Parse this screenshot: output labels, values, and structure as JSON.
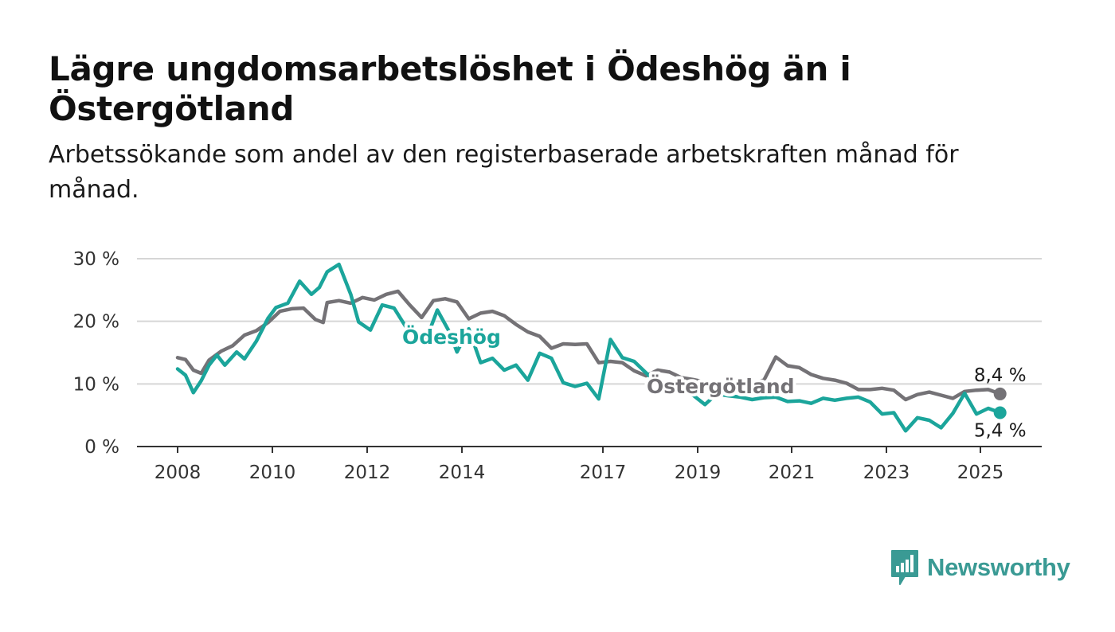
{
  "title": "Lägre ungdomsarbetslöshet i Ödeshög än i Östergötland",
  "subtitle": "Arbetssökande som andel av den registerbaserade arbetskraften månad för månad.",
  "brand": {
    "name": "Newsworthy",
    "color": "#3a9a94",
    "icon": "bar-chart-speech-bubble-icon"
  },
  "chart_data": {
    "type": "line",
    "x_ticks": [
      "2008",
      "2010",
      "2012",
      "2014",
      "2017",
      "2019",
      "2021",
      "2023",
      "2025"
    ],
    "y_ticks": [
      0,
      10,
      20,
      30
    ],
    "y_tick_labels": [
      "0 %",
      "10 %",
      "20 %",
      "30 %"
    ],
    "ylim": [
      0,
      30
    ],
    "xlim": [
      "2007-10",
      "2026-12"
    ],
    "grid": true,
    "legend": "inline labels",
    "series": [
      {
        "name": "Östergötland",
        "color": "#747276",
        "end_label": "8,4 %",
        "points": [
          [
            "2008-01",
            14.2
          ],
          [
            "2008-03",
            13.9
          ],
          [
            "2008-05",
            12.2
          ],
          [
            "2008-07",
            11.7
          ],
          [
            "2008-09",
            13.8
          ],
          [
            "2008-12",
            15.2
          ],
          [
            "2009-03",
            16.1
          ],
          [
            "2009-06",
            17.8
          ],
          [
            "2009-09",
            18.5
          ],
          [
            "2009-12",
            19.8
          ],
          [
            "2010-03",
            21.6
          ],
          [
            "2010-06",
            22.0
          ],
          [
            "2010-09",
            22.1
          ],
          [
            "2010-12",
            20.3
          ],
          [
            "2011-02",
            19.8
          ],
          [
            "2011-03",
            23.0
          ],
          [
            "2011-06",
            23.3
          ],
          [
            "2011-09",
            22.9
          ],
          [
            "2011-12",
            23.8
          ],
          [
            "2012-03",
            23.4
          ],
          [
            "2012-06",
            24.3
          ],
          [
            "2012-09",
            24.8
          ],
          [
            "2012-12",
            22.6
          ],
          [
            "2013-03",
            20.6
          ],
          [
            "2013-06",
            23.3
          ],
          [
            "2013-09",
            23.6
          ],
          [
            "2013-12",
            23.1
          ],
          [
            "2014-03",
            20.4
          ],
          [
            "2014-06",
            21.3
          ],
          [
            "2014-09",
            21.6
          ],
          [
            "2014-12",
            20.9
          ],
          [
            "2015-03",
            19.5
          ],
          [
            "2015-06",
            18.3
          ],
          [
            "2015-09",
            17.6
          ],
          [
            "2015-12",
            15.7
          ],
          [
            "2016-03",
            16.4
          ],
          [
            "2016-06",
            16.3
          ],
          [
            "2016-09",
            16.4
          ],
          [
            "2016-12",
            13.4
          ],
          [
            "2017-03",
            13.6
          ],
          [
            "2017-06",
            13.4
          ],
          [
            "2017-09",
            12.1
          ],
          [
            "2017-12",
            11.3
          ],
          [
            "2018-03",
            12.2
          ],
          [
            "2018-06",
            11.9
          ],
          [
            "2018-09",
            11.0
          ],
          [
            "2018-12",
            10.7
          ],
          [
            "2019-03",
            10.3
          ],
          [
            "2019-06",
            9.8
          ],
          [
            "2019-09",
            10.4
          ],
          [
            "2019-12",
            9.9
          ],
          [
            "2020-03",
            10.2
          ],
          [
            "2020-06",
            10.6
          ],
          [
            "2020-09",
            14.3
          ],
          [
            "2020-12",
            12.9
          ],
          [
            "2021-03",
            12.6
          ],
          [
            "2021-06",
            11.5
          ],
          [
            "2021-09",
            10.9
          ],
          [
            "2021-12",
            10.6
          ],
          [
            "2022-03",
            10.1
          ],
          [
            "2022-06",
            9.1
          ],
          [
            "2022-09",
            9.1
          ],
          [
            "2022-12",
            9.3
          ],
          [
            "2023-03",
            9.0
          ],
          [
            "2023-06",
            7.5
          ],
          [
            "2023-09",
            8.3
          ],
          [
            "2023-12",
            8.7
          ],
          [
            "2024-03",
            8.2
          ],
          [
            "2024-06",
            7.7
          ],
          [
            "2024-09",
            8.8
          ],
          [
            "2024-12",
            9.0
          ],
          [
            "2025-03",
            9.1
          ],
          [
            "2025-06",
            8.4
          ]
        ]
      },
      {
        "name": "Ödeshög",
        "color": "#1ba59b",
        "end_label": "5,4 %",
        "points": [
          [
            "2008-01",
            12.4
          ],
          [
            "2008-03",
            11.4
          ],
          [
            "2008-05",
            8.6
          ],
          [
            "2008-07",
            10.5
          ],
          [
            "2008-09",
            13.0
          ],
          [
            "2008-11",
            14.6
          ],
          [
            "2009-01",
            13.0
          ],
          [
            "2009-04",
            15.1
          ],
          [
            "2009-06",
            14.0
          ],
          [
            "2009-09",
            16.8
          ],
          [
            "2009-12",
            20.5
          ],
          [
            "2010-02",
            22.2
          ],
          [
            "2010-05",
            22.9
          ],
          [
            "2010-08",
            26.4
          ],
          [
            "2010-11",
            24.3
          ],
          [
            "2011-01",
            25.4
          ],
          [
            "2011-03",
            27.9
          ],
          [
            "2011-06",
            29.1
          ],
          [
            "2011-09",
            24.3
          ],
          [
            "2011-11",
            19.9
          ],
          [
            "2012-02",
            18.6
          ],
          [
            "2012-05",
            22.6
          ],
          [
            "2012-08",
            22.1
          ],
          [
            "2012-11",
            19.1
          ],
          [
            "2013-02",
            18.4
          ],
          [
            "2013-04",
            16.8
          ],
          [
            "2013-07",
            21.8
          ],
          [
            "2013-10",
            18.4
          ],
          [
            "2013-12",
            15.1
          ],
          [
            "2014-03",
            18.8
          ],
          [
            "2014-06",
            13.4
          ],
          [
            "2014-09",
            14.1
          ],
          [
            "2014-12",
            12.2
          ],
          [
            "2015-03",
            13.0
          ],
          [
            "2015-06",
            10.6
          ],
          [
            "2015-09",
            14.9
          ],
          [
            "2015-12",
            14.1
          ],
          [
            "2016-03",
            10.2
          ],
          [
            "2016-06",
            9.6
          ],
          [
            "2016-09",
            10.1
          ],
          [
            "2016-12",
            7.6
          ],
          [
            "2017-03",
            17.1
          ],
          [
            "2017-06",
            14.2
          ],
          [
            "2017-09",
            13.6
          ],
          [
            "2017-12",
            11.8
          ],
          [
            "2018-03",
            10.0
          ],
          [
            "2018-06",
            9.4
          ],
          [
            "2018-09",
            8.9
          ],
          [
            "2018-12",
            8.2
          ],
          [
            "2019-03",
            6.7
          ],
          [
            "2019-06",
            8.4
          ],
          [
            "2019-09",
            8.1
          ],
          [
            "2019-12",
            7.9
          ],
          [
            "2020-03",
            7.5
          ],
          [
            "2020-06",
            7.8
          ],
          [
            "2020-09",
            7.9
          ],
          [
            "2020-12",
            7.2
          ],
          [
            "2021-03",
            7.3
          ],
          [
            "2021-06",
            6.9
          ],
          [
            "2021-09",
            7.7
          ],
          [
            "2021-12",
            7.4
          ],
          [
            "2022-03",
            7.7
          ],
          [
            "2022-06",
            7.9
          ],
          [
            "2022-09",
            7.1
          ],
          [
            "2022-12",
            5.2
          ],
          [
            "2023-03",
            5.4
          ],
          [
            "2023-06",
            2.5
          ],
          [
            "2023-09",
            4.6
          ],
          [
            "2023-12",
            4.2
          ],
          [
            "2024-03",
            3.0
          ],
          [
            "2024-06",
            5.3
          ],
          [
            "2024-09",
            8.5
          ],
          [
            "2024-12",
            5.2
          ],
          [
            "2025-03",
            6.1
          ],
          [
            "2025-06",
            5.4
          ]
        ]
      }
    ]
  }
}
